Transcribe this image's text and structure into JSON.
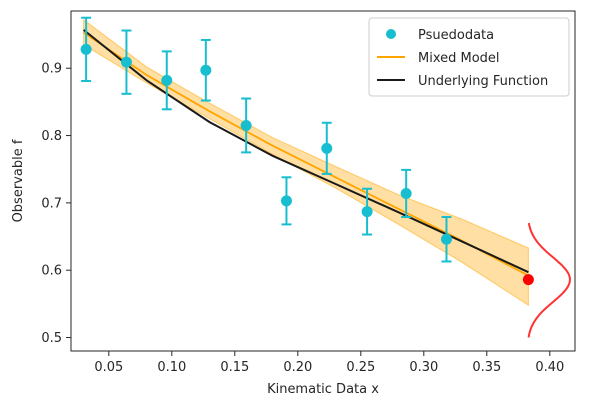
{
  "chart_data": {
    "type": "scatter",
    "xlabel": "Kinematic Data x",
    "ylabel": "Observable f",
    "xlim": [
      0.02,
      0.42
    ],
    "ylim": [
      0.48,
      0.985
    ],
    "xticks": [
      "0.05",
      "0.10",
      "0.15",
      "0.20",
      "0.25",
      "0.30",
      "0.35",
      "0.40"
    ],
    "xtick_values": [
      0.05,
      0.1,
      0.15,
      0.2,
      0.25,
      0.3,
      0.35,
      0.4
    ],
    "yticks": [
      "0.5",
      "0.6",
      "0.7",
      "0.8",
      "0.9"
    ],
    "ytick_values": [
      0.5,
      0.6,
      0.7,
      0.8,
      0.9
    ],
    "grid": false,
    "legend_position": "top-right",
    "legend": {
      "pseudodata": "Psuedodata",
      "mixed_model": "Mixed Model",
      "underlying": "Underlying Function"
    },
    "colors": {
      "pseudodata": "#17becf",
      "mixed_model": "#ffa500",
      "band": "#ffc966",
      "underlying": "#1a1a1a",
      "prediction_point": "#ff0000",
      "distribution": "#ff3333"
    },
    "series": [
      {
        "name": "Psuedodata",
        "kind": "errorbar-scatter",
        "points": [
          {
            "x": 0.032,
            "y": 0.928,
            "err": 0.047
          },
          {
            "x": 0.064,
            "y": 0.909,
            "err": 0.047
          },
          {
            "x": 0.096,
            "y": 0.882,
            "err": 0.043
          },
          {
            "x": 0.127,
            "y": 0.897,
            "err": 0.045
          },
          {
            "x": 0.159,
            "y": 0.815,
            "err": 0.04
          },
          {
            "x": 0.191,
            "y": 0.703,
            "err": 0.035
          },
          {
            "x": 0.223,
            "y": 0.781,
            "err": 0.038
          },
          {
            "x": 0.255,
            "y": 0.687,
            "err": 0.034
          },
          {
            "x": 0.286,
            "y": 0.714,
            "err": 0.035
          },
          {
            "x": 0.318,
            "y": 0.646,
            "err": 0.033
          }
        ]
      },
      {
        "name": "Mixed Model",
        "kind": "line-with-band",
        "x": [
          0.03,
          0.08,
          0.13,
          0.18,
          0.23,
          0.28,
          0.33,
          0.383
        ],
        "y": [
          0.953,
          0.89,
          0.836,
          0.785,
          0.738,
          0.691,
          0.644,
          0.592
        ],
        "lower": [
          0.935,
          0.878,
          0.825,
          0.772,
          0.722,
          0.668,
          0.612,
          0.548
        ],
        "upper": [
          0.972,
          0.902,
          0.848,
          0.797,
          0.754,
          0.712,
          0.676,
          0.633
        ]
      },
      {
        "name": "Underlying Function",
        "kind": "line",
        "x": [
          0.03,
          0.08,
          0.13,
          0.18,
          0.23,
          0.28,
          0.33,
          0.383
        ],
        "y": [
          0.957,
          0.882,
          0.82,
          0.77,
          0.728,
          0.686,
          0.643,
          0.597
        ]
      }
    ],
    "prediction": {
      "x": 0.383,
      "y": 0.586
    },
    "distribution": {
      "x_base": 0.382,
      "width": 0.034,
      "y_center": 0.586,
      "sigma": 0.033,
      "y_min": 0.5,
      "y_max": 0.67
    }
  }
}
